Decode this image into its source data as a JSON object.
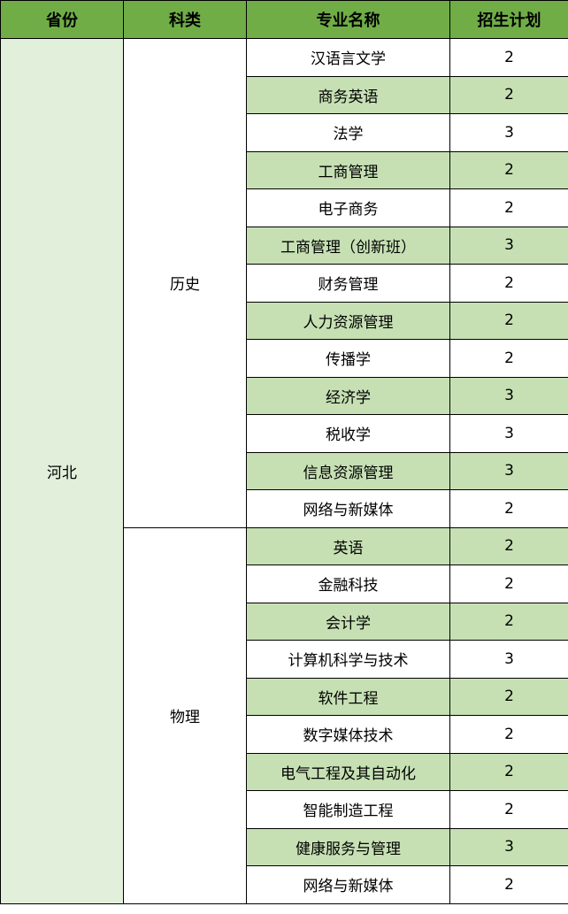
{
  "headers": [
    "省份",
    "科类",
    "专业名称",
    "招生计划"
  ],
  "province": "河北",
  "colors": {
    "header": "#70ad47",
    "province_bg": "#e2efda",
    "alt_row": "#c6e0b4"
  },
  "groups": [
    {
      "category": "历史",
      "rows": [
        {
          "major": "汉语言文学",
          "plan": "2"
        },
        {
          "major": "商务英语",
          "plan": "2"
        },
        {
          "major": "法学",
          "plan": "3"
        },
        {
          "major": "工商管理",
          "plan": "2"
        },
        {
          "major": "电子商务",
          "plan": "2"
        },
        {
          "major": "工商管理（创新班）",
          "plan": "3"
        },
        {
          "major": "财务管理",
          "plan": "2"
        },
        {
          "major": "人力资源管理",
          "plan": "2"
        },
        {
          "major": "传播学",
          "plan": "2"
        },
        {
          "major": "经济学",
          "plan": "3"
        },
        {
          "major": "税收学",
          "plan": "3"
        },
        {
          "major": "信息资源管理",
          "plan": "3"
        },
        {
          "major": "网络与新媒体",
          "plan": "2"
        }
      ]
    },
    {
      "category": "物理",
      "rows": [
        {
          "major": "英语",
          "plan": "2"
        },
        {
          "major": "金融科技",
          "plan": "2"
        },
        {
          "major": "会计学",
          "plan": "2"
        },
        {
          "major": "计算机科学与技术",
          "plan": "3"
        },
        {
          "major": "软件工程",
          "plan": "2"
        },
        {
          "major": "数字媒体技术",
          "plan": "2"
        },
        {
          "major": "电气工程及其自动化",
          "plan": "2"
        },
        {
          "major": "智能制造工程",
          "plan": "2"
        },
        {
          "major": "健康服务与管理",
          "plan": "3"
        },
        {
          "major": "网络与新媒体",
          "plan": "2"
        }
      ]
    }
  ]
}
